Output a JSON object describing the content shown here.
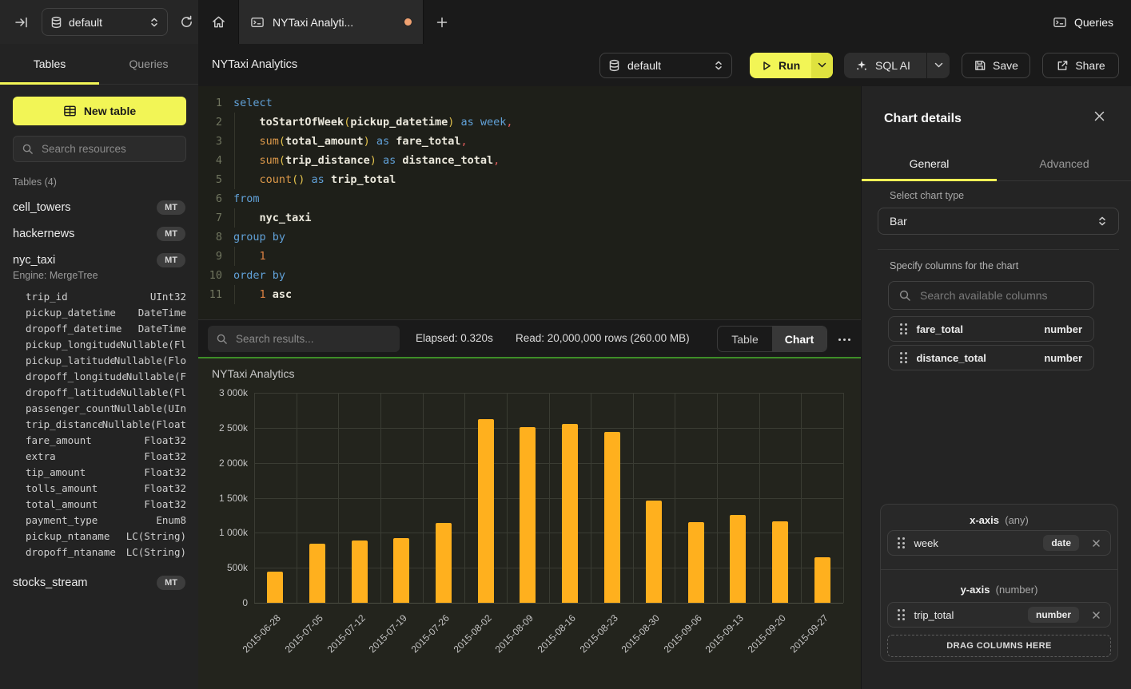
{
  "header": {
    "database_selector": "default",
    "queries_button": "Queries",
    "active_tab_label": "NYTaxi Analyti...",
    "dirty_dot_color": "#f0a171"
  },
  "sidebar": {
    "tabs": {
      "tables": "Tables",
      "queries": "Queries"
    },
    "new_table_label": "New table",
    "search_placeholder": "Search resources",
    "section_label": "Tables (4)",
    "tables": [
      {
        "name": "cell_towers",
        "badge": "MT"
      },
      {
        "name": "hackernews",
        "badge": "MT"
      },
      {
        "name": "nyc_taxi",
        "badge": "MT"
      },
      {
        "name": "stocks_stream",
        "badge": "MT"
      }
    ],
    "nyc_taxi_engine": "Engine: MergeTree",
    "nyc_taxi_columns": [
      {
        "name": "trip_id",
        "type": "UInt32"
      },
      {
        "name": "pickup_datetime",
        "type": "DateTime"
      },
      {
        "name": "dropoff_datetime",
        "type": "DateTime"
      },
      {
        "name": "pickup_longitude",
        "type": "Nullable(Fl"
      },
      {
        "name": "pickup_latitude",
        "type": "Nullable(Flo"
      },
      {
        "name": "dropoff_longitude",
        "type": "Nullable(F"
      },
      {
        "name": "dropoff_latitude",
        "type": "Nullable(Fl"
      },
      {
        "name": "passenger_count",
        "type": "Nullable(UIn"
      },
      {
        "name": "trip_distance",
        "type": "Nullable(Float"
      },
      {
        "name": "fare_amount",
        "type": "Float32"
      },
      {
        "name": "extra",
        "type": "Float32"
      },
      {
        "name": "tip_amount",
        "type": "Float32"
      },
      {
        "name": "tolls_amount",
        "type": "Float32"
      },
      {
        "name": "total_amount",
        "type": "Float32"
      },
      {
        "name": "payment_type",
        "type": "Enum8"
      },
      {
        "name": "pickup_ntaname",
        "type": "LC(String)"
      },
      {
        "name": "dropoff_ntaname",
        "type": "LC(String)"
      }
    ]
  },
  "toolbar": {
    "title": "NYTaxi Analytics",
    "database_selector": "default",
    "run_label": "Run",
    "sql_ai_label": "SQL AI",
    "save_label": "Save",
    "share_label": "Share",
    "accent_color": "#f2f556"
  },
  "editor": {
    "lines": [
      {
        "n": "1",
        "tokens": [
          [
            "kw",
            "select"
          ]
        ]
      },
      {
        "n": "2",
        "tokens": [
          [
            "sp",
            "    "
          ],
          [
            "fn",
            "toStartOfWeek"
          ],
          [
            "br",
            "("
          ],
          [
            "id",
            "pickup_datetime"
          ],
          [
            "br",
            ")"
          ],
          [
            "kw",
            " as "
          ],
          [
            "kw",
            "week"
          ],
          [
            "pu",
            ","
          ]
        ]
      },
      {
        "n": "3",
        "tokens": [
          [
            "sp",
            "    "
          ],
          [
            "fno",
            "sum"
          ],
          [
            "br",
            "("
          ],
          [
            "id",
            "total_amount"
          ],
          [
            "br",
            ")"
          ],
          [
            "kw",
            " as "
          ],
          [
            "id",
            "fare_total"
          ],
          [
            "pu",
            ","
          ]
        ]
      },
      {
        "n": "4",
        "tokens": [
          [
            "sp",
            "    "
          ],
          [
            "fno",
            "sum"
          ],
          [
            "br",
            "("
          ],
          [
            "id",
            "trip_distance"
          ],
          [
            "br",
            ")"
          ],
          [
            "kw",
            " as "
          ],
          [
            "id",
            "distance_total"
          ],
          [
            "pu",
            ","
          ]
        ]
      },
      {
        "n": "5",
        "tokens": [
          [
            "sp",
            "    "
          ],
          [
            "fno",
            "count"
          ],
          [
            "br",
            "()"
          ],
          [
            "kw",
            " as "
          ],
          [
            "id",
            "trip_total"
          ]
        ]
      },
      {
        "n": "6",
        "tokens": [
          [
            "kw",
            "from"
          ]
        ]
      },
      {
        "n": "7",
        "tokens": [
          [
            "sp",
            "    "
          ],
          [
            "id",
            "nyc_taxi"
          ]
        ]
      },
      {
        "n": "8",
        "tokens": [
          [
            "kw",
            "group by"
          ]
        ]
      },
      {
        "n": "9",
        "tokens": [
          [
            "sp",
            "    "
          ],
          [
            "nu",
            "1"
          ]
        ]
      },
      {
        "n": "10",
        "tokens": [
          [
            "kw",
            "order by"
          ]
        ]
      },
      {
        "n": "11",
        "tokens": [
          [
            "sp",
            "    "
          ],
          [
            "nu",
            "1"
          ],
          [
            "id",
            " asc"
          ]
        ]
      }
    ]
  },
  "results": {
    "search_placeholder": "Search results...",
    "elapsed": "Elapsed: 0.320s",
    "read": "Read: 20,000,000 rows (260.00 MB)",
    "toggle": {
      "table": "Table",
      "chart": "Chart",
      "active": "Chart"
    }
  },
  "chart_data": {
    "type": "bar",
    "title": "NYTaxi Analytics",
    "x": [
      "2015-06-28",
      "2015-07-05",
      "2015-07-12",
      "2015-07-19",
      "2015-07-26",
      "2015-08-02",
      "2015-08-09",
      "2015-08-16",
      "2015-08-23",
      "2015-08-30",
      "2015-09-06",
      "2015-09-13",
      "2015-09-20",
      "2015-09-27"
    ],
    "series": [
      {
        "name": "trip_total",
        "values": [
          450000,
          850000,
          890000,
          920000,
          1140000,
          2620000,
          2510000,
          2560000,
          2440000,
          1460000,
          1150000,
          1250000,
          1160000,
          650000
        ]
      }
    ],
    "xlabel": "week",
    "ylabel": "trip_total",
    "ylim": [
      0,
      3000000
    ],
    "yticks": {
      "values": [
        0,
        500000,
        1000000,
        1500000,
        2000000,
        2500000,
        3000000
      ],
      "labels": [
        "0",
        "500k",
        "1 000k",
        "1 500k",
        "2 000k",
        "2 500k",
        "3 000k"
      ]
    },
    "grid": true,
    "legend_position": "none",
    "bar_color": "#ffb01e",
    "top_border_color": "#3e8e28"
  },
  "panel": {
    "title": "Chart details",
    "tabs": {
      "general": "General",
      "advanced": "Advanced",
      "active": "General"
    },
    "chart_type_label": "Select chart type",
    "chart_type_value": "Bar",
    "columns_label": "Specify columns for the chart",
    "columns_search_placeholder": "Search available columns",
    "available_columns": [
      {
        "name": "fare_total",
        "type": "number"
      },
      {
        "name": "distance_total",
        "type": "number"
      }
    ],
    "x_axis": {
      "label": "x-axis",
      "hint": "(any)",
      "chip": {
        "name": "week",
        "badge": "date"
      }
    },
    "y_axis": {
      "label": "y-axis",
      "hint": "(number)",
      "chip": {
        "name": "trip_total",
        "badge": "number"
      }
    },
    "drop_zone_label": "DRAG COLUMNS HERE"
  }
}
